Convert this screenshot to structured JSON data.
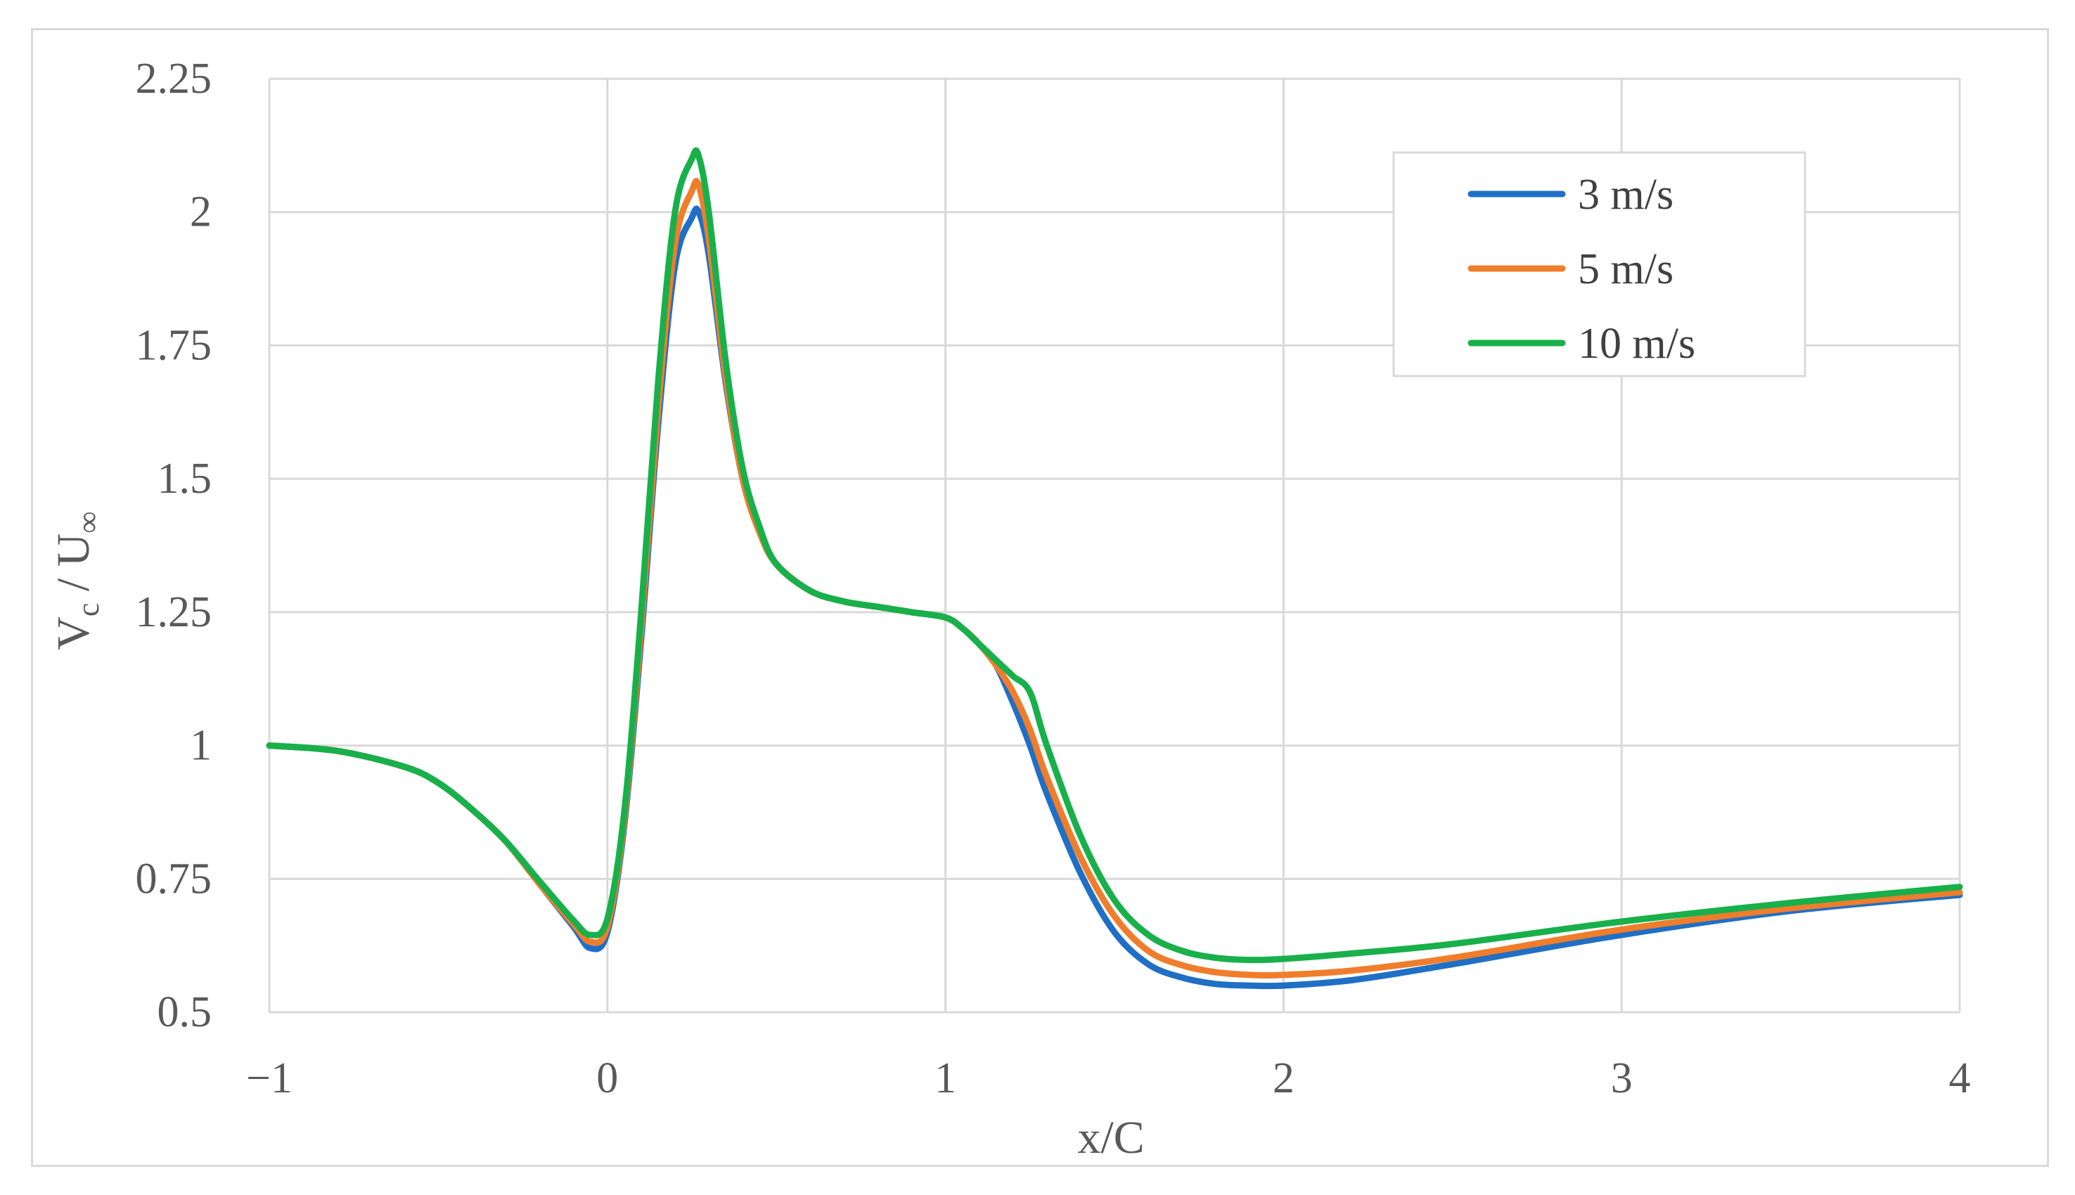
{
  "chart_data": {
    "type": "line",
    "title": "",
    "xlabel": "x/C",
    "ylabel": {
      "main": "V",
      "sub": "c",
      "sep": " / U",
      "sub2": "∞"
    },
    "xlim": [
      -1,
      4
    ],
    "ylim": [
      0.5,
      2.25
    ],
    "xticks": [
      -1,
      0,
      1,
      2,
      3,
      4
    ],
    "xtick_labels": [
      "−1",
      "0",
      "1",
      "2",
      "3",
      "4"
    ],
    "yticks": [
      0.5,
      0.75,
      1,
      1.25,
      1.5,
      1.75,
      2,
      2.25
    ],
    "ytick_labels": [
      "0.5",
      "0.75",
      "1",
      "1.25",
      "1.5",
      "1.75",
      "2",
      "2.25"
    ],
    "grid": true,
    "legend_position": "top-right",
    "series": [
      {
        "name": "3 m/s",
        "color": "#1f6fc5",
        "x": [
          -1,
          -0.8,
          -0.6,
          -0.5,
          -0.4,
          -0.3,
          -0.2,
          -0.1,
          -0.05,
          0,
          0.05,
          0.1,
          0.15,
          0.2,
          0.25,
          0.27,
          0.3,
          0.35,
          0.4,
          0.45,
          0.5,
          0.6,
          0.7,
          0.8,
          0.9,
          1.0,
          1.05,
          1.1,
          1.15,
          1.2,
          1.25,
          1.3,
          1.4,
          1.5,
          1.6,
          1.7,
          1.8,
          1.9,
          2.0,
          2.2,
          2.5,
          3.0,
          3.5,
          4.0
        ],
        "y": [
          1.0,
          0.99,
          0.96,
          0.93,
          0.88,
          0.82,
          0.74,
          0.66,
          0.62,
          0.65,
          0.85,
          1.2,
          1.6,
          1.9,
          1.99,
          2.0,
          1.92,
          1.68,
          1.5,
          1.4,
          1.34,
          1.29,
          1.27,
          1.26,
          1.25,
          1.24,
          1.22,
          1.19,
          1.15,
          1.08,
          1.0,
          0.91,
          0.76,
          0.65,
          0.59,
          0.565,
          0.553,
          0.55,
          0.55,
          0.56,
          0.59,
          0.645,
          0.69,
          0.72
        ]
      },
      {
        "name": "5 m/s",
        "color": "#f07d2b",
        "x": [
          -1,
          -0.8,
          -0.6,
          -0.5,
          -0.4,
          -0.3,
          -0.2,
          -0.1,
          -0.05,
          0,
          0.05,
          0.1,
          0.15,
          0.2,
          0.25,
          0.27,
          0.3,
          0.35,
          0.4,
          0.45,
          0.5,
          0.6,
          0.7,
          0.8,
          0.9,
          1.0,
          1.05,
          1.1,
          1.15,
          1.2,
          1.25,
          1.3,
          1.4,
          1.5,
          1.6,
          1.7,
          1.8,
          1.9,
          2.0,
          2.2,
          2.5,
          3.0,
          3.5,
          4.0
        ],
        "y": [
          1.0,
          0.99,
          0.96,
          0.93,
          0.88,
          0.82,
          0.74,
          0.665,
          0.632,
          0.66,
          0.86,
          1.22,
          1.63,
          1.94,
          2.04,
          2.05,
          1.95,
          1.69,
          1.5,
          1.4,
          1.34,
          1.29,
          1.27,
          1.26,
          1.25,
          1.24,
          1.22,
          1.19,
          1.15,
          1.1,
          1.03,
          0.94,
          0.79,
          0.68,
          0.615,
          0.588,
          0.575,
          0.57,
          0.57,
          0.578,
          0.602,
          0.655,
          0.695,
          0.725
        ]
      },
      {
        "name": "10 m/s",
        "color": "#18b04a",
        "x": [
          -1,
          -0.8,
          -0.6,
          -0.5,
          -0.4,
          -0.3,
          -0.2,
          -0.1,
          -0.05,
          0,
          0.05,
          0.1,
          0.15,
          0.2,
          0.25,
          0.27,
          0.3,
          0.35,
          0.4,
          0.45,
          0.5,
          0.6,
          0.7,
          0.8,
          0.9,
          1.0,
          1.05,
          1.1,
          1.15,
          1.2,
          1.25,
          1.3,
          1.4,
          1.5,
          1.6,
          1.7,
          1.8,
          1.9,
          2.0,
          2.2,
          2.5,
          3.0,
          3.5,
          4.0
        ],
        "y": [
          1.0,
          0.99,
          0.96,
          0.93,
          0.88,
          0.82,
          0.745,
          0.672,
          0.645,
          0.675,
          0.875,
          1.25,
          1.68,
          2.0,
          2.1,
          2.105,
          2.0,
          1.72,
          1.52,
          1.41,
          1.34,
          1.29,
          1.27,
          1.26,
          1.25,
          1.24,
          1.22,
          1.19,
          1.16,
          1.13,
          1.1,
          1.0,
          0.83,
          0.71,
          0.645,
          0.615,
          0.602,
          0.598,
          0.6,
          0.61,
          0.628,
          0.67,
          0.705,
          0.735
        ]
      }
    ]
  }
}
